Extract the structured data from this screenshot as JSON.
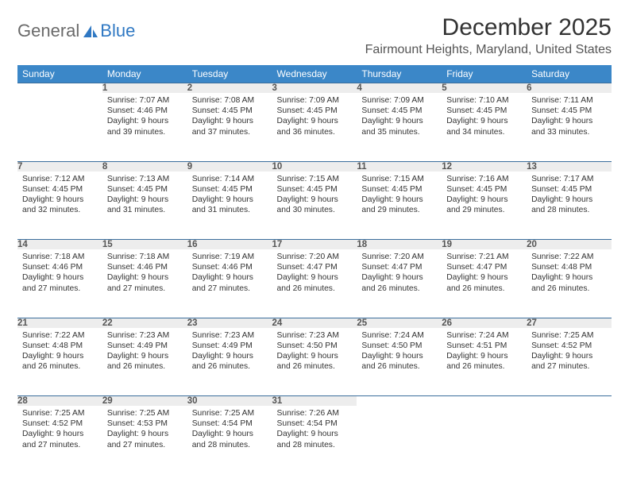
{
  "brand": {
    "part1": "General",
    "part2": "Blue"
  },
  "title": "December 2025",
  "location": "Fairmount Heights, Maryland, United States",
  "colors": {
    "header_bg": "#3b87c8",
    "header_text": "#ffffff",
    "daynum_bg": "#ededed",
    "rule": "#3b6e9c",
    "body_text": "#333333",
    "logo_gray": "#6a6a6a",
    "logo_blue": "#2f78c3"
  },
  "weekdays": [
    "Sunday",
    "Monday",
    "Tuesday",
    "Wednesday",
    "Thursday",
    "Friday",
    "Saturday"
  ],
  "weeks": [
    [
      null,
      {
        "n": "1",
        "sr": "7:07 AM",
        "ss": "4:46 PM",
        "dl": "9 hours and 39 minutes."
      },
      {
        "n": "2",
        "sr": "7:08 AM",
        "ss": "4:45 PM",
        "dl": "9 hours and 37 minutes."
      },
      {
        "n": "3",
        "sr": "7:09 AM",
        "ss": "4:45 PM",
        "dl": "9 hours and 36 minutes."
      },
      {
        "n": "4",
        "sr": "7:09 AM",
        "ss": "4:45 PM",
        "dl": "9 hours and 35 minutes."
      },
      {
        "n": "5",
        "sr": "7:10 AM",
        "ss": "4:45 PM",
        "dl": "9 hours and 34 minutes."
      },
      {
        "n": "6",
        "sr": "7:11 AM",
        "ss": "4:45 PM",
        "dl": "9 hours and 33 minutes."
      }
    ],
    [
      {
        "n": "7",
        "sr": "7:12 AM",
        "ss": "4:45 PM",
        "dl": "9 hours and 32 minutes."
      },
      {
        "n": "8",
        "sr": "7:13 AM",
        "ss": "4:45 PM",
        "dl": "9 hours and 31 minutes."
      },
      {
        "n": "9",
        "sr": "7:14 AM",
        "ss": "4:45 PM",
        "dl": "9 hours and 31 minutes."
      },
      {
        "n": "10",
        "sr": "7:15 AM",
        "ss": "4:45 PM",
        "dl": "9 hours and 30 minutes."
      },
      {
        "n": "11",
        "sr": "7:15 AM",
        "ss": "4:45 PM",
        "dl": "9 hours and 29 minutes."
      },
      {
        "n": "12",
        "sr": "7:16 AM",
        "ss": "4:45 PM",
        "dl": "9 hours and 29 minutes."
      },
      {
        "n": "13",
        "sr": "7:17 AM",
        "ss": "4:45 PM",
        "dl": "9 hours and 28 minutes."
      }
    ],
    [
      {
        "n": "14",
        "sr": "7:18 AM",
        "ss": "4:46 PM",
        "dl": "9 hours and 27 minutes."
      },
      {
        "n": "15",
        "sr": "7:18 AM",
        "ss": "4:46 PM",
        "dl": "9 hours and 27 minutes."
      },
      {
        "n": "16",
        "sr": "7:19 AM",
        "ss": "4:46 PM",
        "dl": "9 hours and 27 minutes."
      },
      {
        "n": "17",
        "sr": "7:20 AM",
        "ss": "4:47 PM",
        "dl": "9 hours and 26 minutes."
      },
      {
        "n": "18",
        "sr": "7:20 AM",
        "ss": "4:47 PM",
        "dl": "9 hours and 26 minutes."
      },
      {
        "n": "19",
        "sr": "7:21 AM",
        "ss": "4:47 PM",
        "dl": "9 hours and 26 minutes."
      },
      {
        "n": "20",
        "sr": "7:22 AM",
        "ss": "4:48 PM",
        "dl": "9 hours and 26 minutes."
      }
    ],
    [
      {
        "n": "21",
        "sr": "7:22 AM",
        "ss": "4:48 PM",
        "dl": "9 hours and 26 minutes."
      },
      {
        "n": "22",
        "sr": "7:23 AM",
        "ss": "4:49 PM",
        "dl": "9 hours and 26 minutes."
      },
      {
        "n": "23",
        "sr": "7:23 AM",
        "ss": "4:49 PM",
        "dl": "9 hours and 26 minutes."
      },
      {
        "n": "24",
        "sr": "7:23 AM",
        "ss": "4:50 PM",
        "dl": "9 hours and 26 minutes."
      },
      {
        "n": "25",
        "sr": "7:24 AM",
        "ss": "4:50 PM",
        "dl": "9 hours and 26 minutes."
      },
      {
        "n": "26",
        "sr": "7:24 AM",
        "ss": "4:51 PM",
        "dl": "9 hours and 26 minutes."
      },
      {
        "n": "27",
        "sr": "7:25 AM",
        "ss": "4:52 PM",
        "dl": "9 hours and 27 minutes."
      }
    ],
    [
      {
        "n": "28",
        "sr": "7:25 AM",
        "ss": "4:52 PM",
        "dl": "9 hours and 27 minutes."
      },
      {
        "n": "29",
        "sr": "7:25 AM",
        "ss": "4:53 PM",
        "dl": "9 hours and 27 minutes."
      },
      {
        "n": "30",
        "sr": "7:25 AM",
        "ss": "4:54 PM",
        "dl": "9 hours and 28 minutes."
      },
      {
        "n": "31",
        "sr": "7:26 AM",
        "ss": "4:54 PM",
        "dl": "9 hours and 28 minutes."
      },
      null,
      null,
      null
    ]
  ],
  "labels": {
    "sunrise": "Sunrise:",
    "sunset": "Sunset:",
    "daylight": "Daylight:"
  }
}
